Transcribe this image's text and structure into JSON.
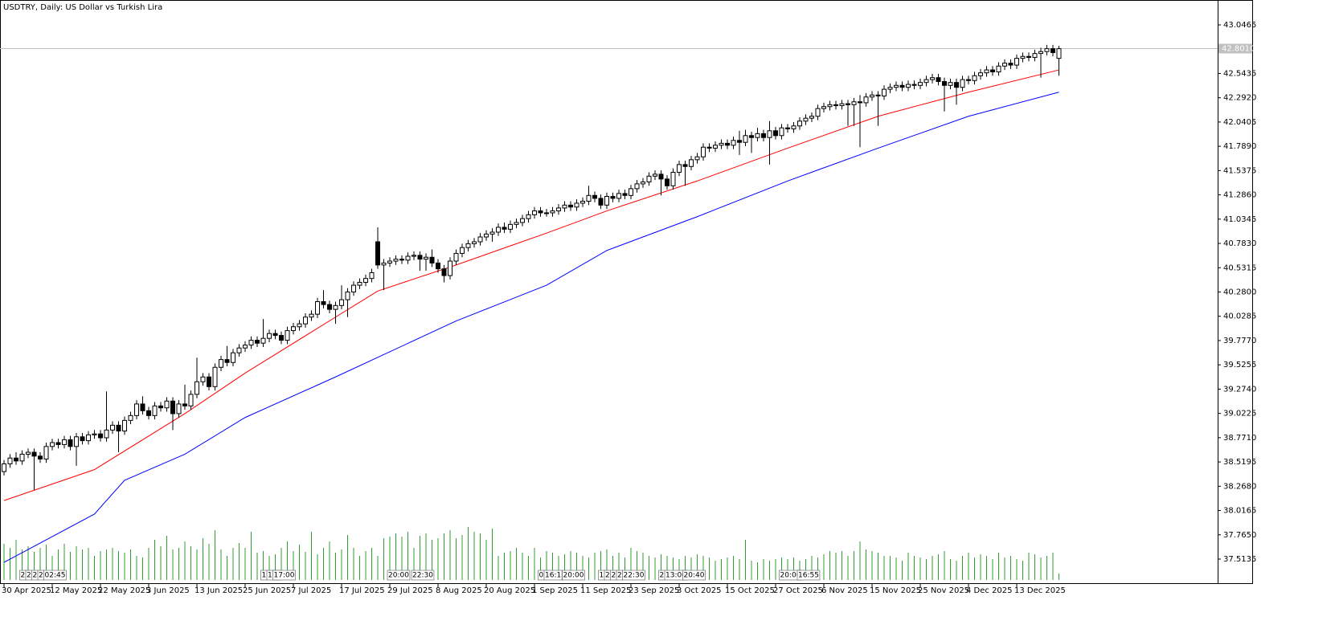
{
  "chart_data": {
    "type": "candlestick",
    "title": "USDTRY, Daily:  US Dollar vs Turkish Lira",
    "categories": [
      "30 Apr 2025",
      null,
      null,
      null,
      null,
      null,
      null,
      null,
      "12 May 2025",
      null,
      null,
      null,
      null,
      null,
      null,
      null,
      "22 May 2025",
      null,
      null,
      null,
      null,
      null,
      null,
      null,
      "3 Jun 2025",
      null,
      null,
      null,
      null,
      null,
      null,
      null,
      "13 Jun 2025",
      null,
      null,
      null,
      null,
      null,
      null,
      null,
      "25 Jun 2025",
      null,
      null,
      null,
      null,
      null,
      null,
      null,
      "7 Jul 2025",
      null,
      null,
      null,
      null,
      null,
      null,
      null,
      "17 Jul 2025",
      null,
      null,
      null,
      null,
      null,
      null,
      null,
      "29 Jul 2025",
      null,
      null,
      null,
      null,
      null,
      null,
      null,
      "8 Aug 2025",
      null,
      null,
      null,
      null,
      null,
      null,
      null,
      "20 Aug 2025",
      null,
      null,
      null,
      null,
      null,
      null,
      null,
      "1 Sep 2025",
      null,
      null,
      null,
      null,
      null,
      null,
      null,
      "11 Sep 2025",
      null,
      null,
      null,
      null,
      null,
      null,
      null,
      "23 Sep 2025",
      null,
      null,
      null,
      null,
      null,
      null,
      null,
      "3 Oct 2025",
      null,
      null,
      null,
      null,
      null,
      null,
      null,
      "15 Oct 2025",
      null,
      null,
      null,
      null,
      null,
      null,
      null,
      "27 Oct 2025",
      null,
      null,
      null,
      null,
      null,
      null,
      null,
      "6 Nov 2025",
      null,
      null,
      null,
      null,
      null,
      null,
      null,
      "15 Nov 2025",
      null,
      null,
      null,
      null,
      null,
      null,
      null,
      "25 Nov 2025",
      null,
      null,
      null,
      null,
      null,
      null,
      null,
      "4 Dec 2025",
      null,
      null,
      null,
      null,
      null,
      null,
      null,
      "13 Dec 2025",
      null,
      null,
      null,
      null,
      null,
      null,
      null
    ],
    "event_labels": [
      null,
      null,
      null,
      "2",
      "2",
      "2",
      "2",
      "02:45",
      null,
      null,
      null,
      null,
      null,
      null,
      null,
      null,
      null,
      null,
      null,
      null,
      null,
      null,
      null,
      null,
      null,
      null,
      null,
      null,
      null,
      null,
      null,
      null,
      null,
      null,
      null,
      null,
      null,
      null,
      null,
      null,
      null,
      null,
      null,
      "1",
      "13:",
      "17:00",
      null,
      null,
      null,
      null,
      null,
      null,
      null,
      null,
      null,
      null,
      null,
      null,
      null,
      null,
      null,
      null,
      null,
      null,
      "20:00",
      null,
      null,
      null,
      "22:30",
      null,
      null,
      null,
      null,
      null,
      null,
      null,
      null,
      null,
      null,
      null,
      null,
      null,
      null,
      null,
      null,
      null,
      null,
      null,
      null,
      "0",
      "16:1",
      null,
      null,
      "20:00",
      null,
      null,
      null,
      null,
      null,
      "1",
      "2",
      "2",
      "2",
      "22:30",
      null,
      null,
      null,
      null,
      null,
      "2",
      "13:00",
      null,
      null,
      "20:40",
      null,
      null,
      null,
      null,
      null,
      null,
      null,
      null,
      null,
      null,
      null,
      null,
      null,
      null,
      null,
      "20:00",
      null,
      null,
      "16:55",
      null,
      null,
      null,
      null,
      null,
      null,
      null,
      null,
      null,
      null,
      null,
      null,
      null,
      null,
      null,
      null,
      null,
      null,
      null,
      null,
      null,
      null,
      null,
      null,
      null,
      null,
      null,
      null,
      null,
      null,
      null,
      null,
      null,
      null,
      null,
      null,
      null,
      null,
      null,
      null,
      null,
      null,
      null
    ],
    "open": [
      38.42,
      38.5,
      38.56,
      38.53,
      38.6,
      38.62,
      38.58,
      38.55,
      38.68,
      38.72,
      38.7,
      38.75,
      38.68,
      38.78,
      38.74,
      38.8,
      38.81,
      38.77,
      38.85,
      38.9,
      38.84,
      38.95,
      39.0,
      39.12,
      39.05,
      39.0,
      39.1,
      39.08,
      39.15,
      39.02,
      39.12,
      39.1,
      39.22,
      39.35,
      39.4,
      39.3,
      39.5,
      39.58,
      39.55,
      39.65,
      39.7,
      39.73,
      39.78,
      39.75,
      39.8,
      39.85,
      39.83,
      39.78,
      39.88,
      39.92,
      39.95,
      40.02,
      40.05,
      40.18,
      40.15,
      40.1,
      40.14,
      40.2,
      40.28,
      40.35,
      40.38,
      40.42,
      40.8,
      40.56,
      40.58,
      40.6,
      40.62,
      40.61,
      40.65,
      40.66,
      40.62,
      40.64,
      40.58,
      40.52,
      40.45,
      40.6,
      40.68,
      40.74,
      40.78,
      40.8,
      40.85,
      40.88,
      40.9,
      40.95,
      40.93,
      40.98,
      41.0,
      41.04,
      41.08,
      41.12,
      41.1,
      41.1,
      41.12,
      41.15,
      41.18,
      41.16,
      41.2,
      41.22,
      41.28,
      41.25,
      41.18,
      41.27,
      41.25,
      41.3,
      41.28,
      41.35,
      41.4,
      41.42,
      41.48,
      41.5,
      41.45,
      41.38,
      41.52,
      41.6,
      41.58,
      41.65,
      41.68,
      41.78,
      41.77,
      41.8,
      41.82,
      41.8,
      41.85,
      41.83,
      41.9,
      41.88,
      41.92,
      41.88,
      41.95,
      41.9,
      41.98,
      41.97,
      42.0,
      42.05,
      42.08,
      42.1,
      42.18,
      42.2,
      42.22,
      42.21,
      42.23,
      42.22,
      42.25,
      42.24,
      42.3,
      42.32,
      42.31,
      42.38,
      42.4,
      42.42,
      42.4,
      42.43,
      42.42,
      42.45,
      42.48,
      42.5,
      42.46,
      42.42,
      42.45,
      42.4,
      42.48,
      42.47,
      42.52,
      42.55,
      42.58,
      42.56,
      42.62,
      42.65,
      42.63,
      42.7,
      42.72,
      42.71,
      42.75,
      42.77,
      42.8,
      42.7
    ],
    "high": [
      38.54,
      38.6,
      38.62,
      38.64,
      38.66,
      38.66,
      38.62,
      38.72,
      38.76,
      38.76,
      38.79,
      38.79,
      38.82,
      38.82,
      38.84,
      38.85,
      38.85,
      39.25,
      38.94,
      38.94,
      38.99,
      39.04,
      39.16,
      39.2,
      39.09,
      39.14,
      39.14,
      39.19,
      39.19,
      39.16,
      39.32,
      39.26,
      39.6,
      39.44,
      39.44,
      39.54,
      39.62,
      39.72,
      39.69,
      39.74,
      39.77,
      39.82,
      39.82,
      40.0,
      39.89,
      39.89,
      39.87,
      39.92,
      39.96,
      39.99,
      40.06,
      40.09,
      40.22,
      40.3,
      40.19,
      40.18,
      40.35,
      40.32,
      40.39,
      40.42,
      40.46,
      40.52,
      40.95,
      40.62,
      40.64,
      40.66,
      40.66,
      40.69,
      40.7,
      40.7,
      40.68,
      40.72,
      40.62,
      40.56,
      40.64,
      40.72,
      40.78,
      40.82,
      40.84,
      40.89,
      40.92,
      40.94,
      40.99,
      41.0,
      41.02,
      41.04,
      41.08,
      41.12,
      41.16,
      41.16,
      41.14,
      41.16,
      41.19,
      41.22,
      41.22,
      41.24,
      41.26,
      41.38,
      41.32,
      41.29,
      41.31,
      41.31,
      41.34,
      41.34,
      41.39,
      41.44,
      41.46,
      41.52,
      41.54,
      41.54,
      41.49,
      41.56,
      41.64,
      41.64,
      41.69,
      41.72,
      41.82,
      41.82,
      41.84,
      41.86,
      41.86,
      41.89,
      41.95,
      41.96,
      41.94,
      41.98,
      41.96,
      42.05,
      41.99,
      42.02,
      42.02,
      42.04,
      42.09,
      42.12,
      42.14,
      42.22,
      42.24,
      42.26,
      42.26,
      42.27,
      42.27,
      42.29,
      42.32,
      42.34,
      42.36,
      42.36,
      42.42,
      42.44,
      42.46,
      42.46,
      42.47,
      42.47,
      42.49,
      42.52,
      42.54,
      42.54,
      42.5,
      42.49,
      42.49,
      42.52,
      42.52,
      42.56,
      42.59,
      42.62,
      42.62,
      42.66,
      42.69,
      42.69,
      42.74,
      42.76,
      42.76,
      42.79,
      42.81,
      42.84,
      42.84,
      42.83
    ],
    "low": [
      38.38,
      38.46,
      38.49,
      38.49,
      38.56,
      38.23,
      38.51,
      38.51,
      38.64,
      38.66,
      38.66,
      38.64,
      38.48,
      38.7,
      38.7,
      38.76,
      38.73,
      38.73,
      38.81,
      38.62,
      38.8,
      38.91,
      38.96,
      39.01,
      38.96,
      38.96,
      39.04,
      39.04,
      38.85,
      38.98,
      39.06,
      39.06,
      39.18,
      39.31,
      39.26,
      39.26,
      39.46,
      39.51,
      39.51,
      39.61,
      39.66,
      39.69,
      39.71,
      39.71,
      39.76,
      39.79,
      39.74,
      39.74,
      39.84,
      39.88,
      39.91,
      39.98,
      40.01,
      40.11,
      40.06,
      39.95,
      40.1,
      40.02,
      40.24,
      40.31,
      40.34,
      40.38,
      40.52,
      40.3,
      40.54,
      40.56,
      40.57,
      40.57,
      40.61,
      40.5,
      40.5,
      40.54,
      40.48,
      40.38,
      40.41,
      40.56,
      40.64,
      40.7,
      40.74,
      40.76,
      40.81,
      40.8,
      40.86,
      40.89,
      40.89,
      40.94,
      40.96,
      41.0,
      41.04,
      41.06,
      41.06,
      41.06,
      41.08,
      41.11,
      41.12,
      41.12,
      41.16,
      41.18,
      41.21,
      41.14,
      41.14,
      41.21,
      41.21,
      41.24,
      41.24,
      41.31,
      41.36,
      41.38,
      41.44,
      41.28,
      41.34,
      41.34,
      41.48,
      41.38,
      41.54,
      41.61,
      41.64,
      41.73,
      41.73,
      41.76,
      41.76,
      41.76,
      41.7,
      41.79,
      41.72,
      41.84,
      41.84,
      41.6,
      41.86,
      41.86,
      41.93,
      41.93,
      41.96,
      42.01,
      42.04,
      42.06,
      42.14,
      42.16,
      42.17,
      42.17,
      42.0,
      42.0,
      41.78,
      42.2,
      42.26,
      42.0,
      42.27,
      42.34,
      42.36,
      42.36,
      42.36,
      42.38,
      42.38,
      42.41,
      42.44,
      42.42,
      42.15,
      42.38,
      42.22,
      42.36,
      42.43,
      42.43,
      42.48,
      42.51,
      42.52,
      42.52,
      42.58,
      42.59,
      42.59,
      42.66,
      42.67,
      42.67,
      42.5,
      42.73,
      42.72,
      42.52
    ],
    "close": [
      38.5,
      38.56,
      38.53,
      38.6,
      38.62,
      38.58,
      38.55,
      38.68,
      38.72,
      38.7,
      38.75,
      38.68,
      38.78,
      38.74,
      38.8,
      38.81,
      38.77,
      38.85,
      38.9,
      38.84,
      38.95,
      39.0,
      39.12,
      39.05,
      39.0,
      39.1,
      39.08,
      39.15,
      39.02,
      39.12,
      39.1,
      39.22,
      39.35,
      39.4,
      39.3,
      39.5,
      39.58,
      39.55,
      39.65,
      39.7,
      39.73,
      39.78,
      39.75,
      39.8,
      39.85,
      39.83,
      39.78,
      39.88,
      39.92,
      39.95,
      40.02,
      40.05,
      40.18,
      40.15,
      40.1,
      40.14,
      40.2,
      40.28,
      40.35,
      40.38,
      40.42,
      40.48,
      40.56,
      40.58,
      40.6,
      40.62,
      40.61,
      40.65,
      40.66,
      40.62,
      40.64,
      40.58,
      40.52,
      40.45,
      40.6,
      40.68,
      40.74,
      40.78,
      40.8,
      40.85,
      40.88,
      40.9,
      40.95,
      40.93,
      40.98,
      41.0,
      41.04,
      41.08,
      41.12,
      41.1,
      41.1,
      41.12,
      41.15,
      41.18,
      41.16,
      41.2,
      41.22,
      41.28,
      41.25,
      41.18,
      41.27,
      41.25,
      41.3,
      41.28,
      41.35,
      41.4,
      41.42,
      41.48,
      41.5,
      41.45,
      41.38,
      41.52,
      41.6,
      41.58,
      41.65,
      41.68,
      41.78,
      41.77,
      41.8,
      41.82,
      41.8,
      41.85,
      41.83,
      41.9,
      41.88,
      41.92,
      41.88,
      41.95,
      41.9,
      41.98,
      41.97,
      42.0,
      42.05,
      42.08,
      42.1,
      42.18,
      42.2,
      42.22,
      42.21,
      42.23,
      42.22,
      42.25,
      42.24,
      42.3,
      42.32,
      42.31,
      42.38,
      42.4,
      42.42,
      42.4,
      42.43,
      42.42,
      42.45,
      42.48,
      42.5,
      42.46,
      42.42,
      42.45,
      42.4,
      42.48,
      42.47,
      42.52,
      42.55,
      42.58,
      42.56,
      42.62,
      42.65,
      42.63,
      42.7,
      42.72,
      42.71,
      42.75,
      42.77,
      42.8,
      42.76,
      42.8
    ],
    "up_color": "#ffffff",
    "down_color": "#000000",
    "wick_color": "#000000",
    "ylim": [
      37.2556,
      43.3044
    ],
    "yticks": [
      43.0465,
      42.5435,
      {
        "value": 42.292,
        "label": "42.2920"
      },
      42.0405,
      {
        "value": 41.789,
        "label": "41.7890"
      },
      41.5375,
      {
        "value": 41.286,
        "label": "41.2860"
      },
      41.0345,
      {
        "value": 40.783,
        "label": "40.7830"
      },
      40.5315,
      {
        "value": 40.28,
        "label": "40.2800"
      },
      40.0285,
      {
        "value": 39.777,
        "label": "39.7770"
      },
      39.5255,
      {
        "value": 39.274,
        "label": "39.2740"
      },
      39.0225,
      {
        "value": 38.771,
        "label": "38.7710"
      },
      38.5195,
      {
        "value": 38.268,
        "label": "38.2680"
      },
      38.0165,
      {
        "value": 37.765,
        "label": "37.7650"
      },
      37.5135
    ],
    "moving_averages": [
      {
        "color": "#ff0000",
        "x": [
          0,
          15,
          30,
          40,
          55,
          62,
          75,
          90,
          100,
          115,
          130,
          145,
          160,
          175
        ],
        "values": [
          38.12,
          38.44,
          39.02,
          39.44,
          40.02,
          40.29,
          40.56,
          40.89,
          41.12,
          41.43,
          41.77,
          42.1,
          42.35,
          42.58
        ]
      },
      {
        "color": "#0000ff",
        "x": [
          0,
          15,
          20,
          30,
          40,
          55,
          75,
          90,
          100,
          115,
          130,
          145,
          160,
          175
        ],
        "values": [
          37.48,
          37.98,
          38.33,
          38.6,
          38.98,
          39.4,
          39.98,
          40.35,
          40.71,
          41.06,
          41.43,
          41.77,
          42.1,
          42.35
        ]
      }
    ],
    "volume": {
      "color": "#2e9e2e",
      "vlim": [
        0,
        100
      ],
      "values": [
        45,
        40,
        50,
        38,
        42,
        35,
        40,
        44,
        30,
        38,
        45,
        35,
        42,
        38,
        40,
        30,
        36,
        38,
        40,
        36,
        34,
        38,
        30,
        28,
        40,
        50,
        42,
        55,
        38,
        40,
        48,
        42,
        38,
        52,
        45,
        62,
        38,
        30,
        40,
        46,
        40,
        60,
        34,
        36,
        30,
        32,
        40,
        48,
        36,
        44,
        35,
        60,
        32,
        40,
        48,
        34,
        38,
        56,
        40,
        30,
        36,
        40,
        30,
        52,
        54,
        58,
        54,
        60,
        40,
        55,
        58,
        50,
        52,
        58,
        62,
        52,
        56,
        66,
        60,
        58,
        50,
        64,
        30,
        34,
        36,
        40,
        34,
        30,
        40,
        28,
        36,
        34,
        30,
        32,
        36,
        34,
        30,
        28,
        34,
        36,
        38,
        30,
        34,
        28,
        40,
        36,
        34,
        30,
        28,
        32,
        30,
        28,
        26,
        30,
        28,
        32,
        30,
        28,
        24,
        26,
        28,
        30,
        26,
        50,
        24,
        22,
        26,
        24,
        26,
        28,
        26,
        28,
        24,
        26,
        30,
        28,
        32,
        36,
        34,
        36,
        30,
        36,
        48,
        38,
        36,
        34,
        30,
        30,
        28,
        24,
        34,
        30,
        28,
        26,
        30,
        32,
        36,
        26,
        24,
        30,
        34,
        28,
        32,
        30,
        26,
        34,
        28,
        30,
        26,
        24,
        34,
        32,
        28,
        30,
        34,
        8
      ]
    },
    "current_price": {
      "value": 42.801,
      "label": "42.8010",
      "color": "#c0c0c0"
    }
  }
}
